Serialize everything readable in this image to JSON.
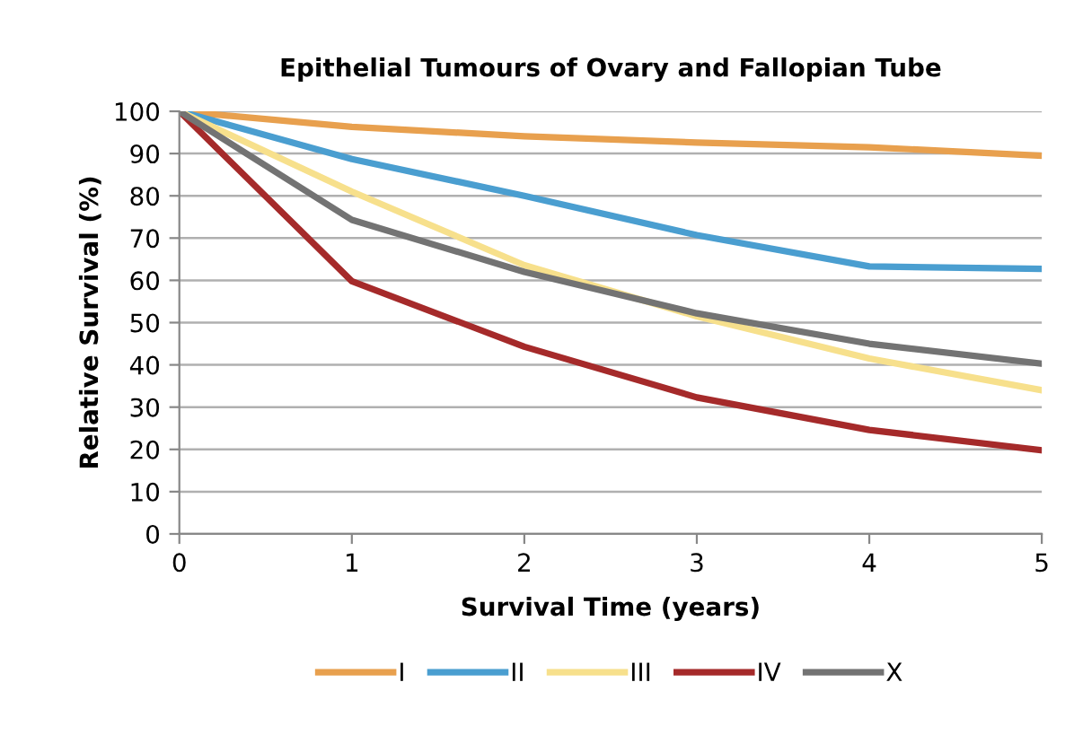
{
  "chart_data": {
    "type": "line",
    "title": "Epithelial Tumours of Ovary and Fallopian Tube",
    "xlabel": "Survival Time (years)",
    "ylabel": "Relative Survival (%)",
    "x": [
      0,
      1,
      2,
      3,
      4,
      5
    ],
    "xlim": [
      0,
      5
    ],
    "xticks": [
      0,
      1,
      2,
      3,
      4,
      5
    ],
    "ylim": [
      0,
      100
    ],
    "yticks": [
      0,
      10,
      20,
      30,
      40,
      50,
      60,
      70,
      80,
      90,
      100
    ],
    "grid": "y",
    "legend": "bottom",
    "marker": "none",
    "line_style": "solid",
    "series": [
      {
        "name": "I",
        "color": "#e8a04e",
        "values": [
          100,
          96.3,
          94.1,
          92.6,
          91.5,
          89.5
        ]
      },
      {
        "name": "II",
        "color": "#4a9ed0",
        "values": [
          100,
          88.7,
          80,
          70.7,
          63.3,
          62.7
        ]
      },
      {
        "name": "III",
        "color": "#f7e08c",
        "values": [
          100,
          81,
          63.6,
          51.5,
          41.5,
          34
        ]
      },
      {
        "name": "IV",
        "color": "#a52a2a",
        "values": [
          100,
          59.8,
          44.3,
          32.3,
          24.6,
          19.8
        ]
      },
      {
        "name": "X",
        "color": "#737373",
        "values": [
          100,
          74.3,
          62,
          52.2,
          45,
          40.3
        ]
      }
    ]
  }
}
